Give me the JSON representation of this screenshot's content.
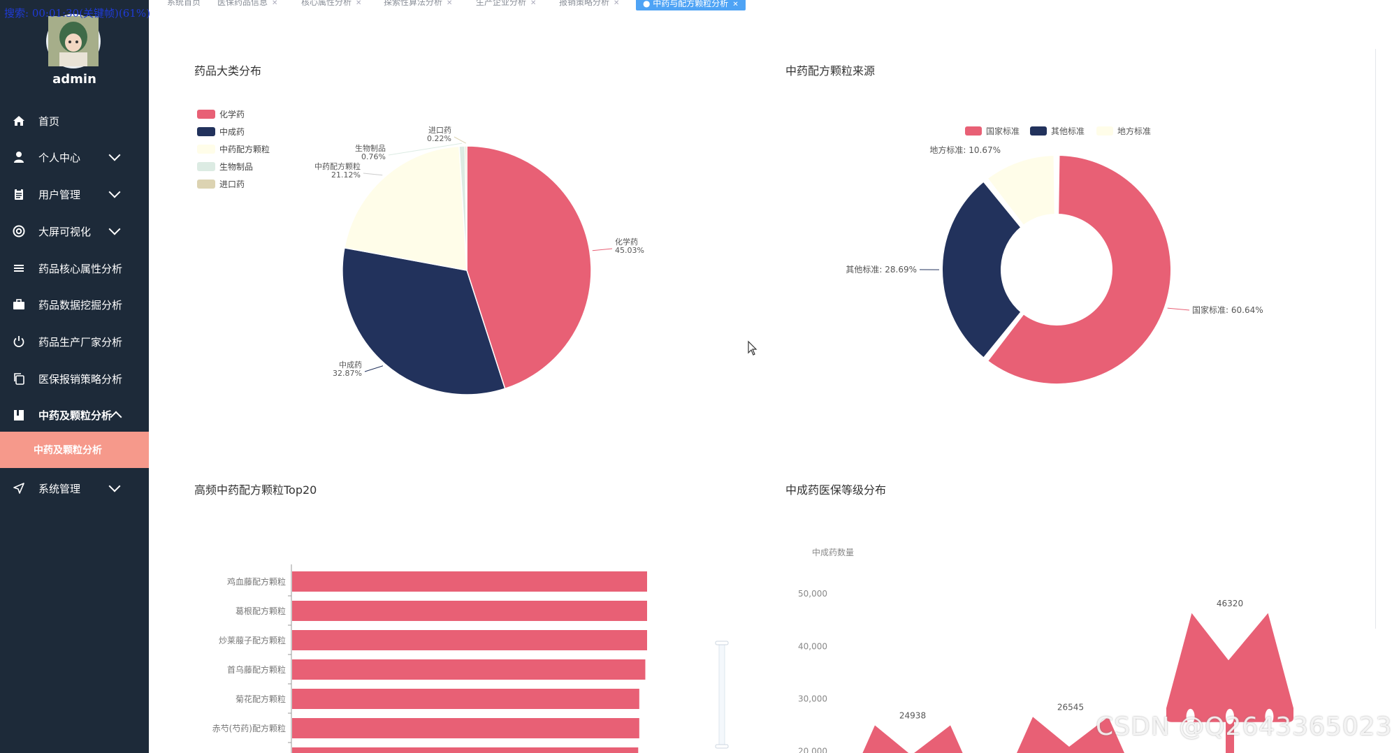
{
  "overlay_text": "搜索: 00:01:30(关键帧)(61%)",
  "user": {
    "name": "admin"
  },
  "sidebar": {
    "items": [
      {
        "label": "首页",
        "icon": "home-icon",
        "arrow": false
      },
      {
        "label": "个人中心",
        "icon": "person-icon",
        "arrow": true
      },
      {
        "label": "用户管理",
        "icon": "clipboard-icon",
        "arrow": true
      },
      {
        "label": "大屏可视化",
        "icon": "lifebuoy-icon",
        "arrow": true
      },
      {
        "label": "药品核心属性分析",
        "icon": "list-icon",
        "arrow": false
      },
      {
        "label": "药品数据挖掘分析",
        "icon": "briefcase-icon",
        "arrow": false
      },
      {
        "label": "药品生产厂家分析",
        "icon": "power-icon",
        "arrow": false
      },
      {
        "label": "医保报销策略分析",
        "icon": "copy-icon",
        "arrow": false
      },
      {
        "label": "中药及颗粒分析",
        "icon": "book-icon",
        "arrow": "up"
      },
      {
        "label": "系统管理",
        "icon": "send-icon",
        "arrow": true
      }
    ],
    "sub_item": "中药及颗粒分析"
  },
  "tabs": [
    {
      "label": "系统首页",
      "closable": false
    },
    {
      "label": "医保药品信息",
      "closable": true
    },
    {
      "label": "核心属性分析",
      "closable": true
    },
    {
      "label": "探索性算法分析",
      "closable": true
    },
    {
      "label": "生产企业分析",
      "closable": true
    },
    {
      "label": "报销策略分析",
      "closable": true
    },
    {
      "label": "中药与配方颗粒分析",
      "closable": true,
      "active": true
    }
  ],
  "colors": {
    "sidebar_bg": "#1d2a39",
    "accent": "#4ea3f5",
    "active_sub": "#f6998b",
    "red": "#e86075",
    "navy": "#22325c",
    "cream": "#fffde9",
    "mint": "#dcebe3",
    "khaki": "#dcd3b2"
  },
  "charts": {
    "pie1": {
      "title": "药品大类分布",
      "chart_data": {
        "type": "pie",
        "legend": [
          "化学药",
          "中成药",
          "中药配方颗粒",
          "生物制品",
          "进口药"
        ],
        "slices": [
          {
            "name": "化学药",
            "value": 45.03,
            "label": "45.03%",
            "color": "#e86075"
          },
          {
            "name": "中成药",
            "value": 32.87,
            "label": "32.87%",
            "color": "#22325c"
          },
          {
            "name": "中药配方颗粒",
            "value": 21.12,
            "label": "21.12%",
            "color": "#fffde9"
          },
          {
            "name": "生物制品",
            "value": 0.76,
            "label": "0.76%",
            "color": "#dcebe3"
          },
          {
            "name": "进口药",
            "value": 0.22,
            "label": "0.22%",
            "color": "#dcd3b2"
          }
        ]
      }
    },
    "donut": {
      "title": "中药配方颗粒来源",
      "chart_data": {
        "type": "pie",
        "legend": [
          "国家标准",
          "其他标准",
          "地方标准"
        ],
        "slices": [
          {
            "name": "国家标准",
            "value": 60.64,
            "label": "国家标准: 60.64%",
            "color": "#e86075"
          },
          {
            "name": "其他标准",
            "value": 28.69,
            "label": "其他标准: 28.69%",
            "color": "#22325c"
          },
          {
            "name": "地方标准",
            "value": 10.67,
            "label": "地方标准: 10.67%",
            "color": "#fffde9"
          }
        ]
      }
    },
    "bar": {
      "title": "高频中药配方颗粒Top20",
      "chart_data": {
        "type": "bar",
        "orientation": "horizontal",
        "categories": [
          "鸡血藤配方颗粒",
          "葛根配方颗粒",
          "炒莱菔子配方颗粒",
          "首乌藤配方颗粒",
          "菊花配方颗粒",
          "赤芍(芍药)配方颗粒"
        ],
        "values": [
          1.0,
          1.0,
          1.0,
          0.995,
          0.978,
          0.978
        ],
        "value_unit": "relative",
        "color": "#e86075"
      }
    },
    "pictorial": {
      "title": "中成药医保等级分布",
      "chart_data": {
        "type": "bar",
        "ylabel": "中成药数量",
        "y_ticks": [
          "50,000",
          "40,000",
          "30,000",
          "20,000"
        ],
        "ylim": [
          0,
          50000
        ],
        "values": [
          24938,
          26545,
          46320
        ],
        "value_labels": [
          "24938",
          "26545",
          "46320"
        ],
        "color": "#e86075"
      }
    }
  },
  "watermark": "CSDN @Q2643365023"
}
